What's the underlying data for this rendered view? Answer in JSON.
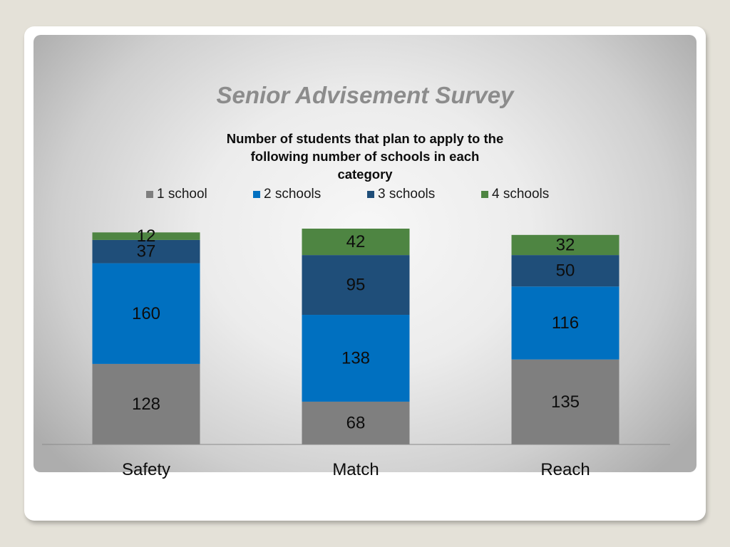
{
  "slide": {
    "title": "Senior Advisement Survey"
  },
  "chart_data": {
    "type": "bar",
    "stacked": true,
    "title": "Number of students that plan to apply to the following number of schools in each category",
    "categories": [
      "Safety",
      "Match",
      "Reach"
    ],
    "series": [
      {
        "name": "1 school",
        "values": [
          128,
          68,
          135
        ],
        "color": "#7f7f7f"
      },
      {
        "name": "2 schools",
        "values": [
          160,
          138,
          116
        ],
        "color": "#0070c0"
      },
      {
        "name": "3 schools",
        "values": [
          37,
          95,
          50
        ],
        "color": "#1f4e79"
      },
      {
        "name": "4 schools",
        "values": [
          12,
          42,
          32
        ],
        "color": "#4e8542"
      }
    ],
    "legend": "top",
    "grid": false,
    "data_labels": true
  }
}
